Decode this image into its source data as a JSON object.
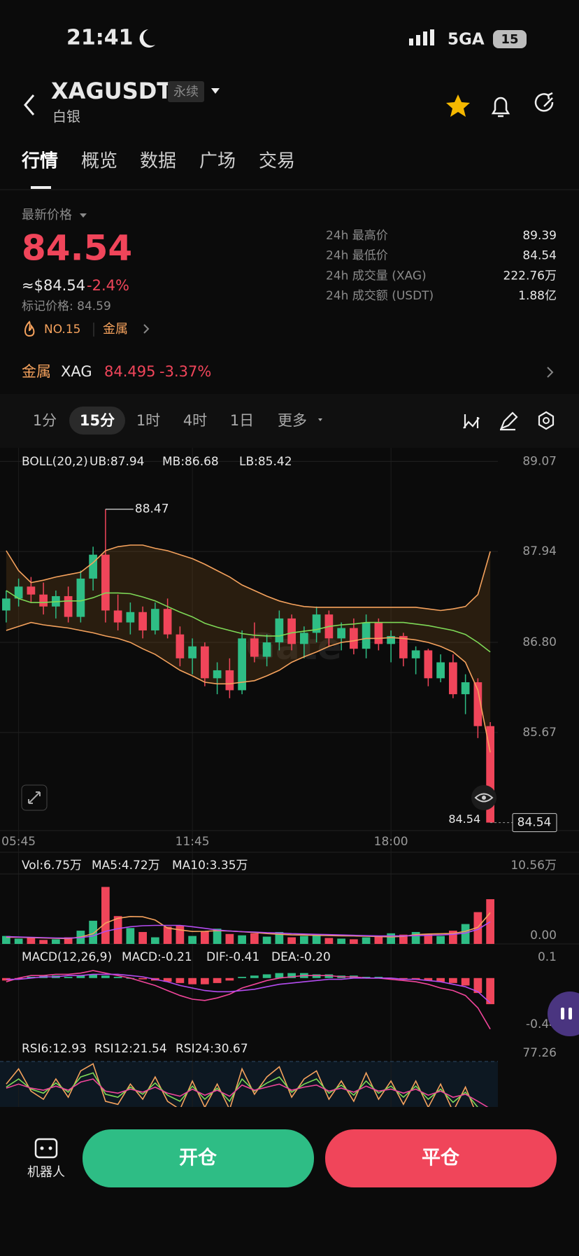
{
  "status": {
    "time": "21:41",
    "network": "5GA",
    "battery": "15"
  },
  "header": {
    "symbol": "XAGUSDT",
    "tag": "永续",
    "subtitle": "白银"
  },
  "tabs": [
    "行情",
    "概览",
    "数据",
    "广场",
    "交易"
  ],
  "price": {
    "label": "最新价格",
    "last": "84.54",
    "usd": "≈$84.54",
    "change": "-2.4%",
    "mark": "标记价格: 84.59",
    "rank": "NO.15",
    "sector": "金属"
  },
  "stats": [
    {
      "label": "24h 最高价",
      "value": "89.39"
    },
    {
      "label": "24h 最低价",
      "value": "84.54"
    },
    {
      "label": "24h 成交量 (XAG)",
      "value": "222.76万"
    },
    {
      "label": "24h 成交额 (USDT)",
      "value": "1.88亿"
    }
  ],
  "related": {
    "sector": "金属",
    "symbol": "XAG",
    "price": "84.495",
    "change": "-3.37%"
  },
  "intervals": [
    "1分",
    "15分",
    "1时",
    "4时",
    "1日",
    "更多"
  ],
  "watermark": "Gate",
  "actions": {
    "robot": "机器人",
    "open": "开仓",
    "close": "平仓"
  },
  "chart_data": [
    {
      "type": "candlestick",
      "title": "BOLL(20,2)",
      "band": true,
      "grid": true,
      "colors": {
        "up": "#2ebd85",
        "down": "#f0455a"
      },
      "categories": [
        null,
        "05:45",
        null,
        null,
        null,
        null,
        null,
        null,
        null,
        null,
        null,
        null,
        null,
        null,
        null,
        "11:45",
        null,
        null,
        null,
        null,
        null,
        null,
        null,
        null,
        null,
        null,
        null,
        null,
        null,
        null,
        null,
        "18:00",
        null,
        null,
        null,
        null,
        null,
        null,
        null,
        null
      ],
      "candles": [
        [
          87.2,
          87.45,
          87.05,
          87.35
        ],
        [
          87.35,
          87.6,
          87.25,
          87.5
        ],
        [
          87.5,
          87.62,
          87.3,
          87.4
        ],
        [
          87.4,
          87.55,
          87.15,
          87.25
        ],
        [
          87.25,
          87.45,
          87.1,
          87.38
        ],
        [
          87.38,
          87.5,
          87.05,
          87.12
        ],
        [
          87.12,
          87.7,
          87.05,
          87.6
        ],
        [
          87.6,
          88.0,
          87.45,
          87.9
        ],
        [
          87.9,
          88.47,
          87.05,
          87.2
        ],
        [
          87.2,
          87.4,
          86.95,
          87.05
        ],
        [
          87.05,
          87.3,
          86.9,
          87.18
        ],
        [
          87.18,
          87.25,
          86.85,
          86.95
        ],
        [
          86.95,
          87.3,
          86.9,
          87.22
        ],
        [
          87.22,
          87.35,
          86.85,
          86.9
        ],
        [
          86.9,
          87.0,
          86.5,
          86.6
        ],
        [
          86.6,
          86.85,
          86.4,
          86.75
        ],
        [
          86.75,
          86.8,
          86.25,
          86.35
        ],
        [
          86.35,
          86.55,
          86.15,
          86.45
        ],
        [
          86.45,
          86.6,
          86.1,
          86.2
        ],
        [
          86.2,
          86.95,
          86.15,
          86.85
        ],
        [
          86.85,
          87.05,
          86.55,
          86.62
        ],
        [
          86.62,
          86.9,
          86.5,
          86.8
        ],
        [
          86.8,
          87.2,
          86.7,
          87.1
        ],
        [
          87.1,
          87.15,
          86.7,
          86.78
        ],
        [
          86.78,
          87.0,
          86.6,
          86.92
        ],
        [
          86.92,
          87.25,
          86.8,
          87.15
        ],
        [
          87.15,
          87.2,
          86.75,
          86.85
        ],
        [
          86.85,
          87.05,
          86.7,
          86.98
        ],
        [
          86.98,
          87.1,
          86.65,
          86.72
        ],
        [
          86.72,
          87.15,
          86.6,
          87.05
        ],
        [
          87.05,
          87.1,
          86.7,
          86.78
        ],
        [
          86.78,
          86.95,
          86.55,
          86.88
        ],
        [
          86.88,
          86.92,
          86.5,
          86.6
        ],
        [
          86.6,
          86.75,
          86.4,
          86.7
        ],
        [
          86.7,
          86.72,
          86.25,
          86.35
        ],
        [
          86.35,
          86.65,
          86.3,
          86.55
        ],
        [
          86.55,
          86.65,
          86.1,
          86.15
        ],
        [
          86.15,
          86.4,
          85.9,
          86.3
        ],
        [
          86.3,
          86.35,
          85.6,
          85.75
        ],
        [
          85.75,
          85.8,
          84.54,
          84.54
        ]
      ],
      "series": [
        {
          "name": "UB:87.94",
          "color": "#f5a25d",
          "values": [
            87.95,
            87.7,
            87.55,
            87.58,
            87.62,
            87.65,
            87.68,
            87.8,
            87.95,
            88.0,
            88.02,
            88.02,
            87.98,
            87.95,
            87.9,
            87.85,
            87.78,
            87.7,
            87.62,
            87.52,
            87.45,
            87.38,
            87.32,
            87.28,
            87.25,
            87.24,
            87.24,
            87.24,
            87.24,
            87.24,
            87.24,
            87.24,
            87.24,
            87.24,
            87.22,
            87.2,
            87.22,
            87.25,
            87.4,
            87.94
          ]
        },
        {
          "name": "MB:86.68",
          "color": "#7ed957",
          "values": [
            87.45,
            87.35,
            87.3,
            87.3,
            87.31,
            87.32,
            87.32,
            87.36,
            87.42,
            87.42,
            87.41,
            87.37,
            87.32,
            87.25,
            87.18,
            87.12,
            87.04,
            86.99,
            86.95,
            86.91,
            86.89,
            86.88,
            86.88,
            86.92,
            86.94,
            86.96,
            87.0,
            87.02,
            87.03,
            87.05,
            87.05,
            87.05,
            87.05,
            87.03,
            87.01,
            86.98,
            86.95,
            86.9,
            86.8,
            86.68
          ]
        },
        {
          "name": "LB:85.42",
          "color": "#f5a25d",
          "values": [
            86.95,
            87.0,
            87.05,
            87.02,
            87.0,
            86.98,
            86.95,
            86.92,
            86.88,
            86.85,
            86.8,
            86.72,
            86.65,
            86.55,
            86.45,
            86.38,
            86.3,
            86.28,
            86.28,
            86.3,
            86.32,
            86.38,
            86.45,
            86.55,
            86.62,
            86.68,
            86.75,
            86.8,
            86.82,
            86.85,
            86.85,
            86.86,
            86.85,
            86.83,
            86.8,
            86.75,
            86.68,
            86.55,
            86.2,
            85.42
          ]
        }
      ],
      "ylim": [
        84.44,
        89.24
      ],
      "yticks": [
        89.07,
        87.94,
        {
          "value": 86.8,
          "label": "86.80"
        },
        85.67
      ]
    },
    {
      "type": "bar",
      "bar_color": "candle",
      "grid": true,
      "series": [
        {
          "name": "Vol:6.75万",
          "color": "#f5a25d",
          "type": "bar",
          "values": [
            1.2,
            0.8,
            0.9,
            0.6,
            0.7,
            1.0,
            2.0,
            3.5,
            8.6,
            4.2,
            2.4,
            1.8,
            1.0,
            2.6,
            2.8,
            1.2,
            1.9,
            2.3,
            1.5,
            1.3,
            1.6,
            1.1,
            1.8,
            1.0,
            1.2,
            1.4,
            0.9,
            0.8,
            0.7,
            1.0,
            1.2,
            1.6,
            1.4,
            1.8,
            1.5,
            1.2,
            2.0,
            3.0,
            4.8,
            6.75
          ]
        },
        {
          "name": "MA5:4.72万",
          "color": "#f5a25d",
          "type": "line",
          "values": [
            1.0,
            1.0,
            0.95,
            0.9,
            0.85,
            0.8,
            1.05,
            1.55,
            3.15,
            3.86,
            4.14,
            4.1,
            3.6,
            2.4,
            2.12,
            1.88,
            1.9,
            2.0,
            1.94,
            1.84,
            1.72,
            1.56,
            1.46,
            1.36,
            1.34,
            1.3,
            1.26,
            1.22,
            1.2,
            1.16,
            1.12,
            1.06,
            1.14,
            1.4,
            1.5,
            1.54,
            1.58,
            1.9,
            2.5,
            4.72
          ]
        },
        {
          "name": "MA10:3.35万",
          "color": "#b44cf0",
          "type": "line",
          "values": [
            1.1,
            1.05,
            1.0,
            0.95,
            0.9,
            0.88,
            0.95,
            1.2,
            1.9,
            2.3,
            2.6,
            2.75,
            2.8,
            2.8,
            2.8,
            2.6,
            2.35,
            2.1,
            1.95,
            1.85,
            1.8,
            1.7,
            1.65,
            1.55,
            1.5,
            1.45,
            1.4,
            1.35,
            1.3,
            1.25,
            1.2,
            1.2,
            1.2,
            1.25,
            1.3,
            1.35,
            1.45,
            1.65,
            2.2,
            3.35
          ]
        }
      ],
      "ylim": [
        0,
        10.56
      ],
      "yticks": [
        {
          "value": 10.56,
          "label": "10.56万"
        },
        {
          "value": 0,
          "label": "0.00"
        }
      ]
    },
    {
      "type": "bar",
      "title": "MACD(12,26,9)",
      "bar_color": "sign",
      "grid": false,
      "series": [
        {
          "name": "MACD:-0.21",
          "color": "#f5a25d",
          "type": "bar",
          "values": [
            -0.02,
            -0.01,
            0.01,
            0.02,
            0.02,
            0.01,
            0.02,
            0.03,
            0.02,
            0.01,
            0,
            -0.01,
            -0.02,
            -0.03,
            -0.04,
            -0.05,
            -0.05,
            -0.04,
            -0.02,
            0.01,
            0.02,
            0.03,
            0.04,
            0.04,
            0.04,
            0.03,
            0.03,
            0.02,
            0.02,
            0.01,
            0.01,
            0,
            -0.01,
            -0.01,
            -0.02,
            -0.03,
            -0.04,
            -0.06,
            -0.12,
            -0.21
          ]
        },
        {
          "name": "DIF:-0.41",
          "color": "#f0459a",
          "type": "line",
          "values": [
            -0.03,
            0,
            0.02,
            0.02,
            0.03,
            0.03,
            0.04,
            0.06,
            0.04,
            0.02,
            0,
            -0.03,
            -0.06,
            -0.1,
            -0.14,
            -0.17,
            -0.18,
            -0.16,
            -0.13,
            -0.08,
            -0.05,
            -0.02,
            0,
            0.01,
            0.02,
            0.02,
            0.02,
            0.01,
            0.01,
            0,
            0,
            -0.01,
            -0.02,
            -0.03,
            -0.05,
            -0.08,
            -0.1,
            -0.14,
            -0.24,
            -0.41
          ]
        },
        {
          "name": "DEA:-0.20",
          "color": "#b44cf0",
          "type": "line",
          "values": [
            -0.01,
            -0.01,
            0,
            0.01,
            0.01,
            0.02,
            0.02,
            0.03,
            0.03,
            0.03,
            0.02,
            0.01,
            -0.01,
            -0.03,
            -0.06,
            -0.08,
            -0.1,
            -0.11,
            -0.11,
            -0.1,
            -0.09,
            -0.07,
            -0.05,
            -0.04,
            -0.03,
            -0.02,
            -0.01,
            -0.01,
            0,
            0,
            0,
            0,
            -0.01,
            -0.01,
            -0.02,
            -0.03,
            -0.05,
            -0.07,
            -0.11,
            -0.2
          ]
        }
      ],
      "ylim": [
        -0.44,
        0.1
      ],
      "yticks": [
        0.1,
        -0.44
      ]
    },
    {
      "type": "line",
      "grid": true,
      "grid_style": "dashed",
      "series": [
        {
          "name": "RSI6:12.93",
          "color": "#f5a25d",
          "values": [
            55,
            70,
            48,
            40,
            60,
            42,
            68,
            75,
            38,
            35,
            55,
            40,
            62,
            38,
            30,
            58,
            32,
            55,
            30,
            70,
            45,
            62,
            72,
            42,
            60,
            68,
            40,
            58,
            38,
            66,
            40,
            58,
            35,
            58,
            32,
            55,
            28,
            52,
            22,
            12.93
          ]
        },
        {
          "name": "RSI12:21.54",
          "color": "#7ed957",
          "values": [
            52,
            60,
            50,
            46,
            56,
            47,
            62,
            66,
            45,
            42,
            52,
            45,
            56,
            44,
            38,
            53,
            40,
            51,
            38,
            60,
            48,
            56,
            62,
            47,
            55,
            60,
            46,
            54,
            44,
            58,
            46,
            53,
            42,
            53,
            40,
            50,
            37,
            47,
            32,
            21.54
          ]
        },
        {
          "name": "RSI24:30.67",
          "color": "#f0459a",
          "values": [
            51,
            55,
            51,
            49,
            53,
            49,
            57,
            60,
            48,
            46,
            50,
            47,
            52,
            46,
            43,
            50,
            44,
            49,
            43,
            54,
            49,
            52,
            55,
            49,
            52,
            54,
            48,
            51,
            47,
            53,
            48,
            50,
            46,
            50,
            44,
            48,
            42,
            45,
            38,
            30.67
          ]
        }
      ],
      "ylim": [
        20,
        77.26
      ],
      "yticks": [
        77.26
      ]
    }
  ]
}
